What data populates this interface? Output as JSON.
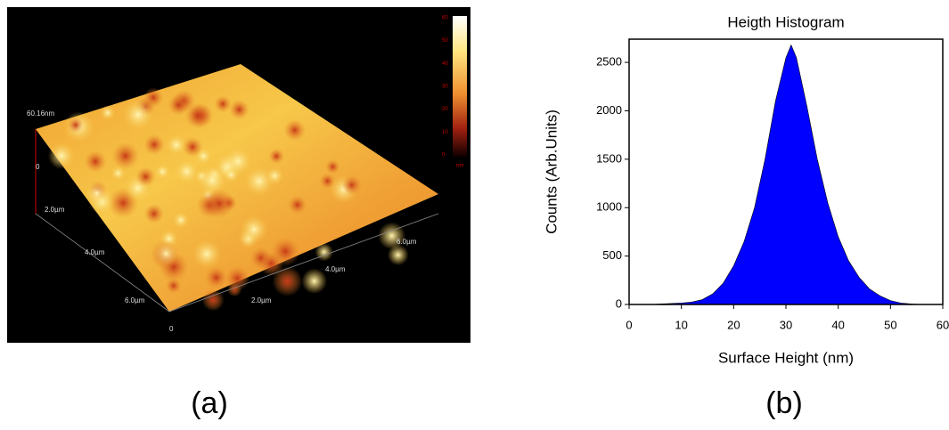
{
  "figure": {
    "panel_a": "(a)",
    "panel_b": "(b)",
    "afm": {
      "z_label": "60.16nm",
      "origin_left": "0",
      "origin_bottom": "0",
      "y_axis_labels": [
        "2.0µm",
        "4.0µm",
        "6.0µm"
      ],
      "x_axis_labels": [
        "2.0µm",
        "4.0µm",
        "6.0µm"
      ],
      "colorbar_ticks": [
        "60",
        "50",
        "40",
        "30",
        "20",
        "10",
        "0"
      ],
      "colorbar_unit": "nm"
    }
  },
  "chart_data": {
    "type": "area",
    "title": "Heigth Histogram",
    "x_label": "Surface Height (nm)",
    "y_label": "Counts (Arb.Units)",
    "color": "#0000ff",
    "x": [
      0,
      2,
      4,
      6,
      8,
      10,
      12,
      14,
      16,
      18,
      20,
      22,
      24,
      26,
      28,
      30,
      31,
      32,
      34,
      36,
      38,
      40,
      42,
      44,
      46,
      48,
      50,
      52,
      54,
      56,
      58,
      60
    ],
    "values": [
      0,
      0,
      0,
      5,
      10,
      15,
      25,
      50,
      110,
      220,
      400,
      650,
      1000,
      1500,
      2100,
      2550,
      2680,
      2550,
      2050,
      1500,
      1050,
      700,
      450,
      280,
      160,
      90,
      40,
      15,
      5,
      0,
      0,
      0
    ],
    "xlim": [
      0,
      60
    ],
    "xticks": [
      0,
      10,
      20,
      30,
      40,
      50,
      60
    ],
    "ylim": [
      0,
      2740
    ],
    "yticks": [
      0,
      500,
      1000,
      1500,
      2000,
      2500
    ]
  }
}
